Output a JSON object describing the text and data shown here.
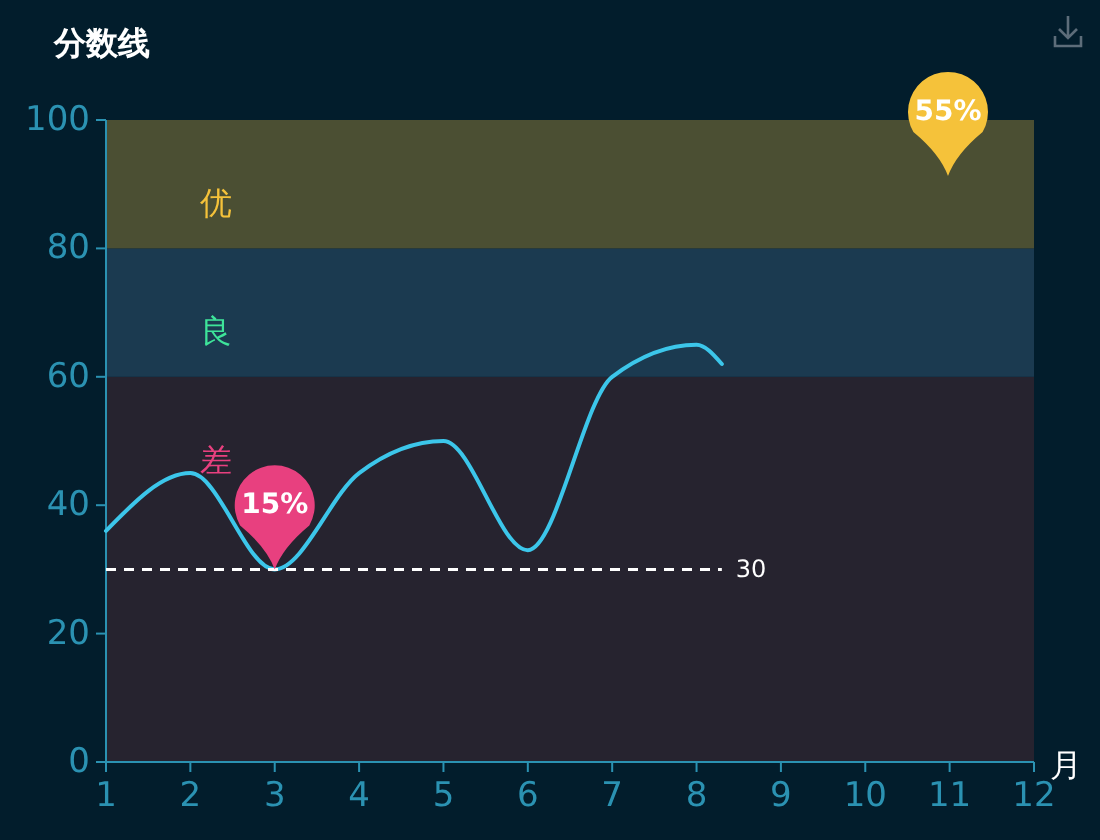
{
  "chart_data": {
    "type": "line",
    "title": "分数线",
    "xlabel": "月",
    "x": [
      1,
      2,
      3,
      4,
      5,
      6,
      7,
      8,
      8.3
    ],
    "series": [
      {
        "color": "#3cc6ea",
        "values": [
          36,
          45,
          30,
          45,
          50,
          33,
          60,
          65,
          62
        ]
      }
    ],
    "xlim": [
      1,
      12
    ],
    "xticks": [
      1,
      2,
      3,
      4,
      5,
      6,
      7,
      8,
      9,
      10,
      11,
      12
    ],
    "ylim": [
      0,
      100
    ],
    "yticks": [
      0,
      20,
      40,
      60,
      80,
      100
    ],
    "bands": [
      {
        "axis": "y",
        "from": 0,
        "to": 60,
        "label": "差",
        "color": "#26232f"
      },
      {
        "axis": "y",
        "from": 60,
        "to": 80,
        "label": "良",
        "color": "#1b3a50"
      },
      {
        "axis": "y",
        "from": 80,
        "to": 100,
        "label": "优",
        "color": "#4b4f33"
      }
    ],
    "ref_lines": [
      {
        "axis": "y",
        "value": 30,
        "label": "30",
        "color": "#ffffff",
        "line_style": "dashed"
      }
    ],
    "annotations": [
      {
        "text": "15%",
        "x": 3,
        "y": 30
      },
      "55%"
    ]
  }
}
